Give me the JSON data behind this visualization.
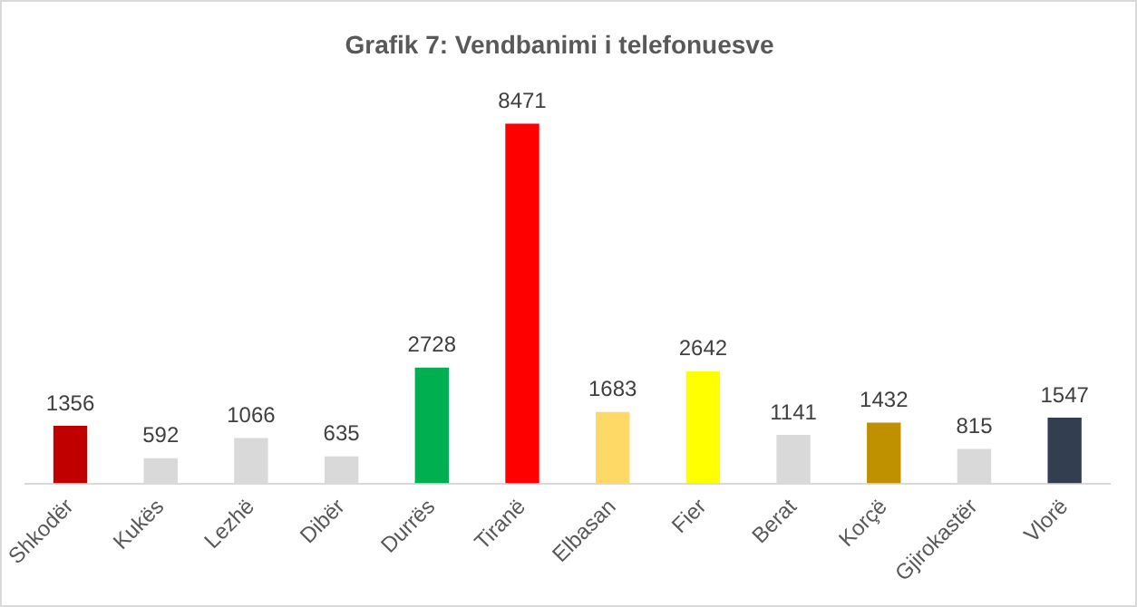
{
  "chart_data": {
    "type": "bar",
    "title": "Grafik 7: Vendbanimi i telefonuesve",
    "categories": [
      "Shkodër",
      "Kukës",
      "Lezhë",
      "Dibër",
      "Durrës",
      "Tiranë",
      "Elbasan",
      "Fier",
      "Berat",
      "Korçë",
      "Gjirokastër",
      "Vlorë"
    ],
    "values": [
      1356,
      592,
      1066,
      635,
      2728,
      8471,
      1683,
      2642,
      1141,
      1432,
      815,
      1547
    ],
    "colors": [
      "#c00000",
      "#d9d9d9",
      "#d9d9d9",
      "#d9d9d9",
      "#00b050",
      "#ff0000",
      "#ffd966",
      "#ffff00",
      "#d9d9d9",
      "#bf9000",
      "#d9d9d9",
      "#333f50"
    ],
    "data_labels": true,
    "grid": false,
    "legend": false,
    "tick_labels": "x"
  }
}
